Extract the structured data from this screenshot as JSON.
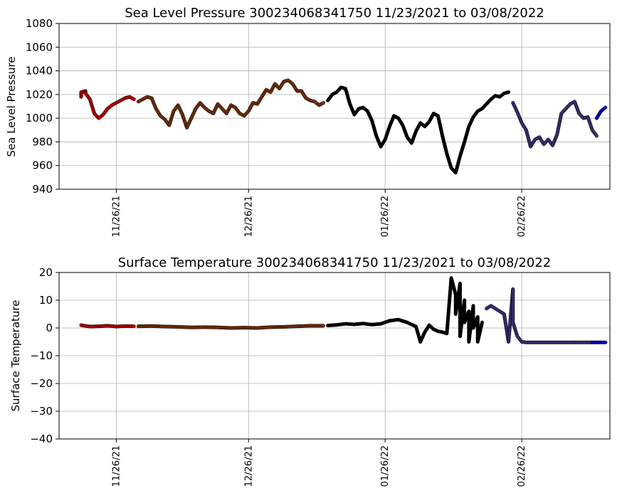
{
  "chart_data": [
    {
      "type": "scatter",
      "title": "Sea Level Pressure 300234068341750  11/23/2021 to 03/08/2022",
      "xlabel": "",
      "ylabel": "Sea Level Pressure",
      "ylim": [
        940,
        1080
      ],
      "yticks": [
        940,
        960,
        980,
        1000,
        1020,
        1040,
        1060,
        1080
      ],
      "xlim": [
        "2021-11-13",
        "2022-03-18"
      ],
      "xticks": [
        {
          "date": "2021-11-26",
          "label": "11/26/21"
        },
        {
          "date": "2021-12-26",
          "label": "12/26/21"
        },
        {
          "date": "2022-01-26",
          "label": "01/26/22"
        },
        {
          "date": "2022-02-26",
          "label": "02/26/22"
        }
      ],
      "grid": true,
      "series": [
        {
          "color": "#dd0000",
          "points": [
            [
              "2021-11-18",
              1018
            ],
            [
              "2021-11-18",
              1022
            ],
            [
              "2021-11-19",
              1023
            ],
            [
              "2021-11-19",
              1021
            ],
            [
              "2021-11-20",
              1016
            ],
            [
              "2021-11-21",
              1004
            ],
            [
              "2021-11-22",
              1000
            ],
            [
              "2021-11-23",
              1003
            ],
            [
              "2021-11-24",
              1008
            ],
            [
              "2021-11-25",
              1011
            ],
            [
              "2021-11-26",
              1013
            ],
            [
              "2021-11-27",
              1015
            ],
            [
              "2021-11-28",
              1017
            ],
            [
              "2021-11-29",
              1018
            ],
            [
              "2021-11-30",
              1016
            ]
          ]
        },
        {
          "color": "#8b3a0e",
          "points": [
            [
              "2021-12-01",
              1014
            ],
            [
              "2021-12-02",
              1016
            ],
            [
              "2021-12-03",
              1018
            ],
            [
              "2021-12-04",
              1017
            ],
            [
              "2021-12-05",
              1008
            ],
            [
              "2021-12-06",
              1002
            ],
            [
              "2021-12-07",
              999
            ],
            [
              "2021-12-08",
              994
            ],
            [
              "2021-12-09",
              1006
            ],
            [
              "2021-12-10",
              1011
            ],
            [
              "2021-12-11",
              1003
            ],
            [
              "2021-12-12",
              992
            ],
            [
              "2021-12-13",
              1000
            ],
            [
              "2021-12-14",
              1008
            ],
            [
              "2021-12-15",
              1013
            ],
            [
              "2021-12-16",
              1009
            ],
            [
              "2021-12-17",
              1006
            ],
            [
              "2021-12-18",
              1004
            ],
            [
              "2021-12-19",
              1012
            ],
            [
              "2021-12-20",
              1008
            ],
            [
              "2021-12-21",
              1004
            ],
            [
              "2021-12-22",
              1011
            ],
            [
              "2021-12-23",
              1009
            ],
            [
              "2021-12-24",
              1004
            ],
            [
              "2021-12-25",
              1002
            ],
            [
              "2021-12-26",
              1006
            ],
            [
              "2021-12-27",
              1013
            ],
            [
              "2021-12-28",
              1012
            ],
            [
              "2021-12-29",
              1018
            ],
            [
              "2021-12-30",
              1024
            ],
            [
              "2021-12-31",
              1022
            ],
            [
              "2022-01-01",
              1029
            ],
            [
              "2022-01-02",
              1025
            ],
            [
              "2022-01-03",
              1031
            ],
            [
              "2022-01-04",
              1032
            ],
            [
              "2022-01-05",
              1029
            ],
            [
              "2022-01-06",
              1023
            ],
            [
              "2022-01-07",
              1023
            ],
            [
              "2022-01-08",
              1017
            ],
            [
              "2022-01-09",
              1015
            ],
            [
              "2022-01-10",
              1014
            ],
            [
              "2022-01-11",
              1011
            ],
            [
              "2022-01-12",
              1013
            ]
          ]
        },
        {
          "color": "#000000",
          "points": [
            [
              "2022-01-13",
              1015
            ],
            [
              "2022-01-14",
              1020
            ],
            [
              "2022-01-15",
              1022
            ],
            [
              "2022-01-16",
              1026
            ],
            [
              "2022-01-17",
              1025
            ],
            [
              "2022-01-18",
              1012
            ],
            [
              "2022-01-19",
              1003
            ],
            [
              "2022-01-20",
              1008
            ],
            [
              "2022-01-21",
              1009
            ],
            [
              "2022-01-22",
              1006
            ],
            [
              "2022-01-23",
              998
            ],
            [
              "2022-01-24",
              985
            ],
            [
              "2022-01-25",
              976
            ],
            [
              "2022-01-26",
              982
            ],
            [
              "2022-01-27",
              993
            ],
            [
              "2022-01-28",
              1002
            ],
            [
              "2022-01-29",
              1000
            ],
            [
              "2022-01-30",
              994
            ],
            [
              "2022-01-31",
              984
            ],
            [
              "2022-02-01",
              979
            ],
            [
              "2022-02-02",
              989
            ],
            [
              "2022-02-03",
              996
            ],
            [
              "2022-02-04",
              993
            ],
            [
              "2022-02-05",
              997
            ],
            [
              "2022-02-06",
              1004
            ],
            [
              "2022-02-07",
              1002
            ],
            [
              "2022-02-08",
              985
            ],
            [
              "2022-02-09",
              970
            ],
            [
              "2022-02-10",
              958
            ],
            [
              "2022-02-11",
              954
            ],
            [
              "2022-02-12",
              968
            ],
            [
              "2022-02-13",
              980
            ],
            [
              "2022-02-14",
              993
            ],
            [
              "2022-02-15",
              1001
            ],
            [
              "2022-02-16",
              1006
            ],
            [
              "2022-02-17",
              1008
            ],
            [
              "2022-02-18",
              1012
            ],
            [
              "2022-02-19",
              1016
            ],
            [
              "2022-02-20",
              1019
            ],
            [
              "2022-02-21",
              1018
            ],
            [
              "2022-02-22",
              1021
            ],
            [
              "2022-02-23",
              1022
            ]
          ]
        },
        {
          "color": "#453c8e",
          "points": [
            [
              "2022-02-24",
              1013
            ],
            [
              "2022-02-25",
              1005
            ],
            [
              "2022-02-26",
              996
            ],
            [
              "2022-02-27",
              990
            ],
            [
              "2022-02-28",
              976
            ],
            [
              "2022-03-01",
              982
            ],
            [
              "2022-03-02",
              984
            ],
            [
              "2022-03-03",
              978
            ],
            [
              "2022-03-04",
              982
            ],
            [
              "2022-03-05",
              977
            ],
            [
              "2022-03-06",
              986
            ],
            [
              "2022-03-07",
              1004
            ],
            [
              "2022-03-08",
              1008
            ],
            [
              "2022-03-09",
              1012
            ],
            [
              "2022-03-10",
              1014
            ],
            [
              "2022-03-11",
              1004
            ],
            [
              "2022-03-12",
              1000
            ],
            [
              "2022-03-13",
              1001
            ],
            [
              "2022-03-14",
              990
            ],
            [
              "2022-03-15",
              985
            ]
          ]
        },
        {
          "color": "#0000dd",
          "points": [
            [
              "2022-03-15",
              1000
            ],
            [
              "2022-03-16",
              1006
            ],
            [
              "2022-03-17",
              1009
            ]
          ]
        }
      ]
    },
    {
      "type": "scatter",
      "title": "Surface Temperature 300234068341750  11/23/2021 to 03/08/2022",
      "xlabel": "",
      "ylabel": "Surface Temperature",
      "ylim": [
        -40,
        20
      ],
      "yticks": [
        -40,
        -30,
        -20,
        -10,
        0,
        10,
        20
      ],
      "xlim": [
        "2021-11-13",
        "2022-03-18"
      ],
      "xticks": [
        {
          "date": "2021-11-26",
          "label": "11/26/21"
        },
        {
          "date": "2021-12-26",
          "label": "12/26/21"
        },
        {
          "date": "2022-01-26",
          "label": "01/26/22"
        },
        {
          "date": "2022-02-26",
          "label": "02/26/22"
        }
      ],
      "grid": true,
      "series": [
        {
          "color": "#dd0000",
          "points": [
            [
              "2021-11-18",
              1.0
            ],
            [
              "2021-11-20",
              0.5
            ],
            [
              "2021-11-22",
              0.6
            ],
            [
              "2021-11-24",
              0.8
            ],
            [
              "2021-11-26",
              0.5
            ],
            [
              "2021-11-28",
              0.7
            ],
            [
              "2021-11-30",
              0.6
            ]
          ]
        },
        {
          "color": "#8b3a0e",
          "points": [
            [
              "2021-12-01",
              0.6
            ],
            [
              "2021-12-04",
              0.7
            ],
            [
              "2021-12-07",
              0.5
            ],
            [
              "2021-12-10",
              0.4
            ],
            [
              "2021-12-13",
              0.2
            ],
            [
              "2021-12-16",
              0.3
            ],
            [
              "2021-12-19",
              0.2
            ],
            [
              "2021-12-22",
              0.0
            ],
            [
              "2021-12-25",
              0.1
            ],
            [
              "2021-12-28",
              0.0
            ],
            [
              "2021-12-31",
              0.3
            ],
            [
              "2022-01-03",
              0.4
            ],
            [
              "2022-01-06",
              0.6
            ],
            [
              "2022-01-09",
              0.8
            ],
            [
              "2022-01-12",
              0.8
            ]
          ]
        },
        {
          "color": "#000000",
          "points": [
            [
              "2022-01-13",
              0.9
            ],
            [
              "2022-01-15",
              1.1
            ],
            [
              "2022-01-17",
              1.5
            ],
            [
              "2022-01-19",
              1.3
            ],
            [
              "2022-01-21",
              1.6
            ],
            [
              "2022-01-23",
              1.2
            ],
            [
              "2022-01-25",
              1.5
            ],
            [
              "2022-01-27",
              2.6
            ],
            [
              "2022-01-29",
              3.0
            ],
            [
              "2022-01-31",
              2.0
            ],
            [
              "2022-02-02",
              0.5
            ],
            [
              "2022-02-03",
              -5.0
            ],
            [
              "2022-02-04",
              -1.5
            ],
            [
              "2022-02-05",
              1.0
            ],
            [
              "2022-02-06",
              -0.5
            ],
            [
              "2022-02-07",
              -1.2
            ],
            [
              "2022-02-08",
              -1.5
            ],
            [
              "2022-02-09",
              -2.0
            ],
            [
              "2022-02-10",
              18.0
            ],
            [
              "2022-02-11",
              12.0
            ],
            [
              "2022-02-11",
              5.0
            ],
            [
              "2022-02-12",
              16.0
            ],
            [
              "2022-02-12",
              -3.0
            ],
            [
              "2022-02-13",
              10.0
            ],
            [
              "2022-02-13",
              2.0
            ],
            [
              "2022-02-14",
              6.0
            ],
            [
              "2022-02-14",
              -5.0
            ],
            [
              "2022-02-15",
              8.0
            ],
            [
              "2022-02-15",
              0.0
            ],
            [
              "2022-02-16",
              4.0
            ],
            [
              "2022-02-16",
              -5.0
            ],
            [
              "2022-02-17",
              2.0
            ]
          ]
        },
        {
          "color": "#453c8e",
          "points": [
            [
              "2022-02-18",
              7.0
            ],
            [
              "2022-02-19",
              8.0
            ],
            [
              "2022-02-20",
              7.0
            ],
            [
              "2022-02-21",
              6.0
            ],
            [
              "2022-02-22",
              5.0
            ],
            [
              "2022-02-23",
              -5.0
            ],
            [
              "2022-02-24",
              14.0
            ],
            [
              "2022-02-24",
              2.0
            ],
            [
              "2022-02-25",
              -3.0
            ],
            [
              "2022-02-26",
              -5.0
            ],
            [
              "2022-02-27",
              -5.2
            ],
            [
              "2022-03-01",
              -5.2
            ],
            [
              "2022-03-03",
              -5.2
            ],
            [
              "2022-03-05",
              -5.2
            ],
            [
              "2022-03-07",
              -5.2
            ],
            [
              "2022-03-09",
              -5.2
            ],
            [
              "2022-03-11",
              -5.2
            ],
            [
              "2022-03-13",
              -5.2
            ],
            [
              "2022-03-14",
              -5.2
            ]
          ]
        },
        {
          "color": "#0000dd",
          "points": [
            [
              "2022-03-14",
              -5.2
            ],
            [
              "2022-03-15",
              -5.2
            ],
            [
              "2022-03-16",
              -5.2
            ],
            [
              "2022-03-17",
              -5.2
            ]
          ]
        }
      ]
    }
  ]
}
